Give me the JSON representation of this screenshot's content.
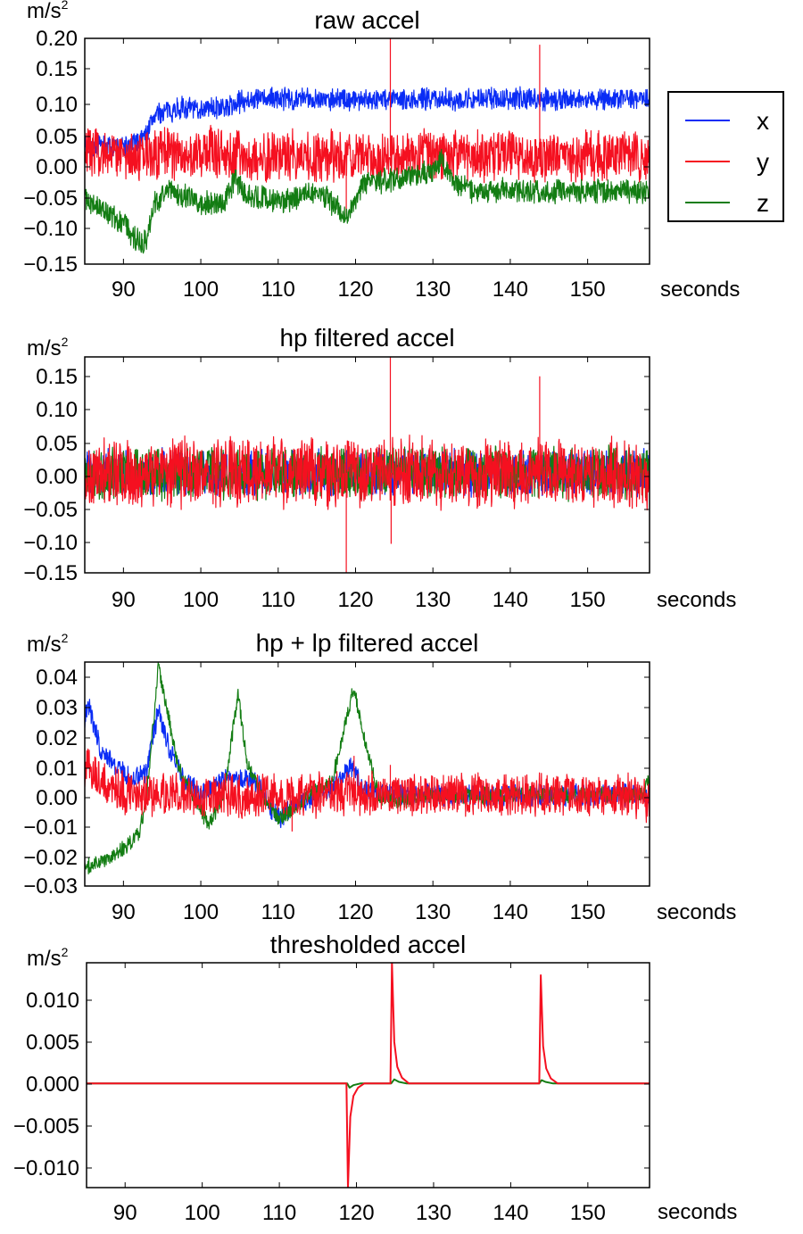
{
  "colors": {
    "x": "#0a2cf5",
    "y": "#f51020",
    "z": "#137d13"
  },
  "chart_data": [
    {
      "type": "line",
      "title": "raw accel",
      "ylabel": "m/s",
      "ylabel_sup": "2",
      "xlabel": "seconds",
      "xlim": [
        85,
        158
      ],
      "ylim": [
        -0.155,
        0.2
      ],
      "xticks": [
        "90",
        "100",
        "110",
        "120",
        "130",
        "140",
        "150"
      ],
      "yticks": [
        "0.20",
        "0.15",
        "0.10",
        "0.05",
        "0.00",
        "−0.05",
        "−0.10",
        "−0.15"
      ],
      "legend": {
        "position": "right",
        "entries": [
          "x",
          "y",
          "z"
        ]
      },
      "series": [
        {
          "name": "x",
          "x": [
            85,
            88,
            91,
            93,
            94,
            97,
            100,
            103,
            105,
            106,
            110,
            115,
            120,
            125,
            130,
            135,
            140,
            145,
            150,
            155,
            158
          ],
          "y": [
            0.03,
            0.03,
            0.03,
            0.05,
            0.08,
            0.09,
            0.09,
            0.09,
            0.1,
            0.105,
            0.105,
            0.105,
            0.105,
            0.105,
            0.105,
            0.105,
            0.105,
            0.105,
            0.105,
            0.105,
            0.105
          ],
          "band": 0.02
        },
        {
          "name": "y",
          "x": [
            85,
            90,
            95,
            100,
            105,
            110,
            115,
            120,
            125,
            130,
            135,
            140,
            145,
            150,
            155,
            158
          ],
          "y": [
            0.02,
            0.015,
            0.02,
            0.02,
            0.015,
            0.015,
            0.015,
            0.015,
            0.015,
            0.015,
            0.015,
            0.015,
            0.015,
            0.015,
            0.015,
            0.015
          ],
          "band": 0.045,
          "spikes": [
            [
              124.5,
              0.2
            ],
            [
              143.8,
              0.19
            ],
            [
              118.8,
              -0.08
            ]
          ]
        },
        {
          "name": "z",
          "x": [
            85,
            87,
            90,
            92,
            93,
            94,
            96,
            100,
            103,
            104.5,
            106,
            108,
            110,
            115,
            118,
            119,
            121,
            125,
            130,
            131,
            133,
            135,
            140,
            145,
            150,
            155,
            158
          ],
          "y": [
            -0.05,
            -0.07,
            -0.09,
            -0.12,
            -0.12,
            -0.06,
            -0.04,
            -0.06,
            -0.06,
            -0.02,
            -0.05,
            -0.05,
            -0.06,
            -0.04,
            -0.07,
            -0.08,
            -0.03,
            -0.02,
            -0.01,
            0.01,
            -0.03,
            -0.04,
            -0.04,
            -0.04,
            -0.04,
            -0.04,
            -0.04
          ],
          "band": 0.022
        }
      ]
    },
    {
      "type": "line",
      "title": "hp filtered accel",
      "ylabel": "m/s",
      "ylabel_sup": "2",
      "xlabel": "seconds",
      "xlim": [
        85,
        158
      ],
      "ylim": [
        -0.155,
        0.18
      ],
      "xticks": [
        "90",
        "100",
        "110",
        "120",
        "130",
        "140",
        "150"
      ],
      "yticks": [
        "0.15",
        "0.10",
        "0.05",
        "0.00",
        "−0.05",
        "−0.10",
        "−0.15"
      ],
      "series": [
        {
          "name": "x",
          "x": [
            85,
            158
          ],
          "y": [
            0.0,
            0.0
          ],
          "band": 0.04
        },
        {
          "name": "z",
          "x": [
            85,
            158
          ],
          "y": [
            0.0,
            0.0
          ],
          "band": 0.045
        },
        {
          "name": "y",
          "x": [
            85,
            158
          ],
          "y": [
            0.0,
            0.0
          ],
          "band": 0.06,
          "spikes": [
            [
              124.5,
              0.18
            ],
            [
              143.8,
              0.15
            ],
            [
              118.8,
              -0.155
            ],
            [
              124.6,
              -0.11
            ]
          ]
        }
      ]
    },
    {
      "type": "line",
      "title": "hp + lp filtered accel",
      "ylabel": "m/s",
      "ylabel_sup": "2",
      "xlabel": "seconds",
      "xlim": [
        85,
        158
      ],
      "ylim": [
        -0.03,
        0.044
      ],
      "xticks": [
        "90",
        "100",
        "110",
        "120",
        "130",
        "140",
        "150"
      ],
      "yticks": [
        "0.04",
        "0.03",
        "0.02",
        "0.01",
        "0.00",
        "−0.01",
        "−0.02",
        "−0.03"
      ],
      "series": [
        {
          "name": "x",
          "x": [
            85,
            85.5,
            87,
            89,
            91,
            93,
            94.5,
            96,
            98,
            100,
            103,
            105,
            107,
            110,
            112,
            115,
            118,
            119.5,
            121,
            125,
            130,
            140,
            150,
            158
          ],
          "y": [
            0.025,
            0.03,
            0.015,
            0.01,
            0.005,
            0.008,
            0.028,
            0.015,
            0.005,
            0.0,
            0.005,
            0.005,
            0.005,
            -0.008,
            -0.003,
            0.0,
            0.005,
            0.01,
            0.002,
            0.0,
            0.0,
            0.0,
            0.0,
            0.0
          ],
          "band": 0.004
        },
        {
          "name": "z",
          "x": [
            85,
            87,
            90,
            92,
            93,
            94.5,
            95.5,
            97,
            99,
            101,
            103,
            104.8,
            106,
            108,
            110,
            112,
            114,
            117,
            119.8,
            121,
            123,
            125,
            130,
            140,
            150,
            157,
            158
          ],
          "y": [
            -0.024,
            -0.022,
            -0.018,
            -0.013,
            0.0,
            0.042,
            0.03,
            0.01,
            0.0,
            -0.01,
            0.0,
            0.034,
            0.01,
            0.0,
            -0.008,
            -0.005,
            0.0,
            0.005,
            0.036,
            0.02,
            0.0,
            -0.002,
            0.0,
            0.0,
            0.0,
            0.0,
            0.006
          ],
          "band": 0.003
        },
        {
          "name": "y",
          "x": [
            85,
            86,
            88,
            90,
            95,
            100,
            105,
            110,
            115,
            120,
            125,
            130,
            135,
            140,
            145,
            150,
            155,
            158
          ],
          "y": [
            0.01,
            0.008,
            0.003,
            0.001,
            0.0,
            0.0,
            0.0,
            0.0,
            0.0,
            0.0,
            0.0,
            0.0,
            0.0,
            0.0,
            0.0,
            0.0,
            0.0,
            -0.002
          ],
          "band": 0.008,
          "spikes": [
            [
              124.5,
              0.01
            ],
            [
              119.8,
              0.013
            ],
            [
              111.8,
              -0.012
            ]
          ]
        }
      ]
    },
    {
      "type": "line",
      "title": "thresholded accel",
      "ylabel": "m/s",
      "ylabel_sup": "2",
      "xlabel": "seconds",
      "xlim": [
        85,
        158
      ],
      "ylim": [
        -0.0125,
        0.0145
      ],
      "xticks": [
        "90",
        "100",
        "110",
        "120",
        "130",
        "140",
        "150"
      ],
      "yticks": [
        "0.010",
        "0.005",
        "0.000",
        "−0.005",
        "−0.010"
      ],
      "series": [
        {
          "name": "z",
          "x": [
            85,
            118.8,
            119.1,
            119.6,
            120.5,
            124.5,
            124.9,
            125.5,
            126.5,
            143.7,
            144.0,
            144.5,
            145.5,
            158
          ],
          "y": [
            0.0,
            0.0,
            -0.0005,
            -0.0002,
            0.0,
            0.0,
            0.0005,
            0.0002,
            0.0,
            0.0,
            0.0004,
            0.0002,
            0.0,
            0.0
          ]
        },
        {
          "name": "y",
          "x": [
            85,
            118.7,
            118.9,
            119.2,
            119.6,
            120.2,
            121.0,
            124.4,
            124.6,
            124.9,
            125.3,
            125.9,
            126.8,
            143.7,
            143.9,
            144.2,
            144.6,
            145.2,
            146.1,
            158
          ],
          "y": [
            0.0,
            0.0,
            -0.0125,
            -0.004,
            -0.0015,
            -0.0005,
            0.0,
            0.0,
            0.0145,
            0.005,
            0.002,
            0.0007,
            0.0,
            0.0,
            0.013,
            0.0045,
            0.0018,
            0.0006,
            0.0,
            0.0
          ]
        }
      ]
    }
  ]
}
